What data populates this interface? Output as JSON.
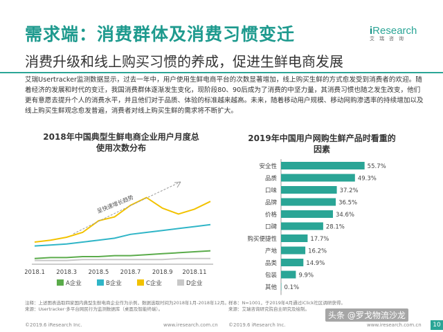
{
  "header": {
    "title": "需求端：消费群体及消费习惯变迁",
    "subtitle": "消费升级和线上购买习惯的养成，促进生鲜电商发展"
  },
  "logo": {
    "brand_i": "i",
    "brand_rest": "Research",
    "cn": "艾瑞咨询"
  },
  "body": {
    "paragraph": "艾瑞Usertracker监测数据显示，过去一年中，用户使用生鲜电商平台的次数显著增加，线上购买生鲜的方式愈发受到消费者的欢迎。随着经济的发展和时代的变迁，我国消费群体逐渐发生变化，现阶段80、90后成为了消费的中坚力量，其消费习惯也随之发生改变，他们更有意愿去提升个人的消费水平，并且他们对于品质、体验的标准越来越高。未来，随着移动用户规模、移动网购渗透率的持续增加以及线上购买生鲜观念愈发普遍，消费者对线上购买生鲜的需求将不断扩大。"
  },
  "left_panel": {
    "title_line1": "2018年中国典型生鲜电商企业用户月度总",
    "title_line2": "使用次数分布",
    "trend_label": "呈快速增长趋势",
    "note": "注释：上述图表选取四家国内典型生鲜电商企业作为示例，数据选取时间为2018年1月-2018年12月。",
    "source": "来源：Usertracker·多平台网民行为监测数据库（桌面及智能终端）。"
  },
  "right_panel": {
    "title_line1": "2019年中国用户网购生鲜产品时看重的",
    "title_line2": "因素",
    "note": "样本：N=1001，于2019年4月通过iClick社区调研获得。",
    "source": "来源：艾瑞咨询研究院自主研究及绘制。"
  },
  "footer": {
    "copyright": "©2019.6 iResearch Inc.",
    "site": "www.iresearch.com.cn",
    "page": "10",
    "watermark": "头条 @罗戈物流沙龙"
  },
  "chart_data": [
    {
      "type": "line",
      "title": "2018年中国典型生鲜电商企业用户月度总使用次数分布",
      "x": [
        "2018.1",
        "2018.2",
        "2018.3",
        "2018.4",
        "2018.5",
        "2018.6",
        "2018.7",
        "2018.8",
        "2018.9",
        "2018.10",
        "2018.11",
        "2018.12"
      ],
      "x_ticks": [
        "2018.1",
        "2018.3",
        "2018.5",
        "2018.7",
        "2018.9",
        "2018.11"
      ],
      "ylim": [
        0,
        100
      ],
      "legend_position": "bottom",
      "grid": false,
      "series": [
        {
          "name": "A企业",
          "color": "#5aab4a",
          "values": [
            3,
            4,
            4,
            5,
            5,
            6,
            6,
            7,
            8,
            9,
            10,
            11
          ]
        },
        {
          "name": "B企业",
          "color": "#2fb5c7",
          "values": [
            16,
            17,
            18,
            20,
            22,
            24,
            28,
            30,
            32,
            34,
            36,
            38
          ]
        },
        {
          "name": "C企业",
          "color": "#f2c200",
          "values": [
            20,
            22,
            25,
            30,
            42,
            46,
            58,
            66,
            55,
            49,
            54,
            62
          ]
        },
        {
          "name": "D企业",
          "color": "#c8c8c8",
          "values": [
            1,
            1,
            1,
            2,
            2,
            2,
            2,
            2,
            2,
            3,
            3,
            3
          ]
        }
      ]
    },
    {
      "type": "bar",
      "title": "2019年中国用户网购生鲜产品时看重的因素",
      "categories": [
        "安全性",
        "品质",
        "口味",
        "品牌",
        "价格",
        "口碑",
        "购买便捷性",
        "产地",
        "品类",
        "包装",
        "其他"
      ],
      "values": [
        55.7,
        49.3,
        37.2,
        36.5,
        34.6,
        28.1,
        17.7,
        16.2,
        14.9,
        9.9,
        0.1
      ],
      "value_labels": [
        "55.7%",
        "49.3%",
        "37.2%",
        "36.5%",
        "34.6%",
        "28.1%",
        "17.7%",
        "16.2%",
        "14.9%",
        "9.9%",
        "0.1%"
      ],
      "color": "#2aa596",
      "orientation": "horizontal"
    }
  ]
}
